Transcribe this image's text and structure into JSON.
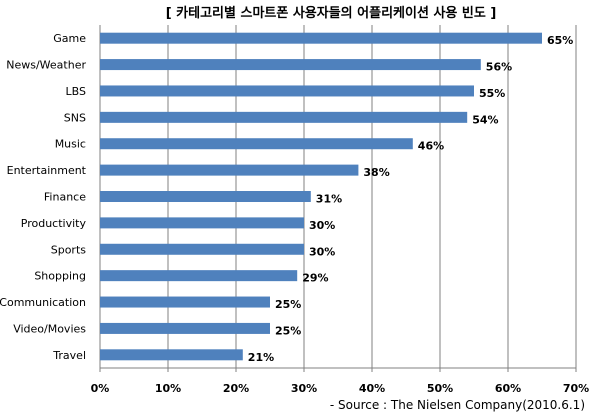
{
  "chart_data": {
    "type": "bar",
    "orientation": "horizontal",
    "title": "[ 카테고리별 스마트폰 사용자들의 어플리케이션 사용 빈도 ]",
    "source": "- Source : The Nielsen Company(2010.6.1)",
    "categories": [
      "Game",
      "News/Weather",
      "LBS",
      "SNS",
      "Music",
      "Entertainment",
      "Finance",
      "Productivity",
      "Sports",
      "Shopping",
      "Communication",
      "Video/Movies",
      "Travel"
    ],
    "values": [
      65,
      56,
      55,
      54,
      46,
      38,
      31,
      30,
      30,
      29,
      25,
      25,
      21
    ],
    "value_labels": [
      "65%",
      "56%",
      "55%",
      "54%",
      "46%",
      "38%",
      "31%",
      "30%",
      "30%",
      "29%",
      "25%",
      "25%",
      "21%"
    ],
    "x_ticks": [
      "0%",
      "10%",
      "20%",
      "30%",
      "40%",
      "50%",
      "60%",
      "70%"
    ],
    "xlim": [
      0,
      70
    ],
    "grid": true,
    "bar_color": "#4F81BD"
  }
}
